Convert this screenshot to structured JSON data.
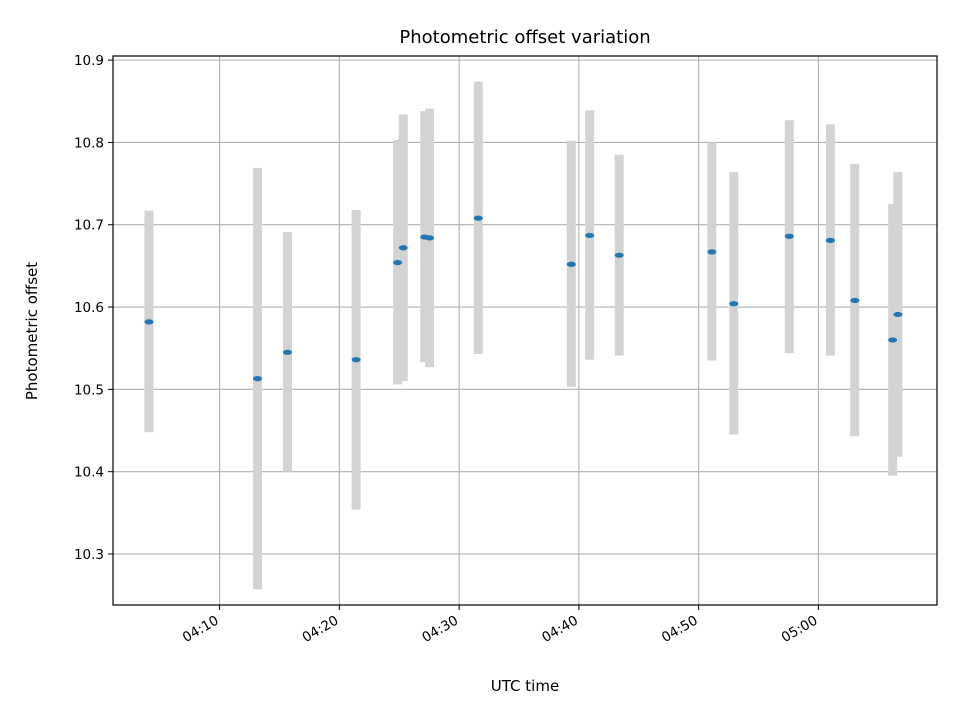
{
  "chart_data": {
    "type": "scatter",
    "title": "Photometric offset variation",
    "xlabel": "UTC time",
    "ylabel": "Photometric offset",
    "x_axis": "time",
    "xlim": [
      "04:01:06",
      "05:09:54"
    ],
    "ylim": [
      10.238,
      10.905
    ],
    "xticks": [
      "04:10",
      "04:20",
      "04:30",
      "04:40",
      "04:50",
      "05:00"
    ],
    "yticks": [
      10.3,
      10.4,
      10.5,
      10.6,
      10.7,
      10.8,
      10.9
    ],
    "grid": true,
    "legend": "none",
    "series": [
      {
        "point_color": "#1f77b4",
        "errorbar_color": "#d3d3d3",
        "points": [
          {
            "x": "04:04:06",
            "y": 10.582,
            "ymin": 10.448,
            "ymax": 10.717
          },
          {
            "x": "04:13:10",
            "y": 10.513,
            "ymin": 10.257,
            "ymax": 10.769
          },
          {
            "x": "04:15:40",
            "y": 10.545,
            "ymin": 10.4,
            "ymax": 10.691
          },
          {
            "x": "04:21:24",
            "y": 10.536,
            "ymin": 10.354,
            "ymax": 10.718
          },
          {
            "x": "04:24:52",
            "y": 10.654,
            "ymin": 10.506,
            "ymax": 10.803
          },
          {
            "x": "04:25:20",
            "y": 10.672,
            "ymin": 10.51,
            "ymax": 10.834
          },
          {
            "x": "04:27:08",
            "y": 10.685,
            "ymin": 10.533,
            "ymax": 10.838
          },
          {
            "x": "04:27:32",
            "y": 10.684,
            "ymin": 10.527,
            "ymax": 10.841
          },
          {
            "x": "04:31:36",
            "y": 10.708,
            "ymin": 10.543,
            "ymax": 10.874
          },
          {
            "x": "04:39:22",
            "y": 10.652,
            "ymin": 10.503,
            "ymax": 10.802
          },
          {
            "x": "04:40:54",
            "y": 10.687,
            "ymin": 10.536,
            "ymax": 10.839
          },
          {
            "x": "04:43:22",
            "y": 10.663,
            "ymin": 10.541,
            "ymax": 10.785
          },
          {
            "x": "04:51:06",
            "y": 10.667,
            "ymin": 10.535,
            "ymax": 10.8
          },
          {
            "x": "04:52:56",
            "y": 10.604,
            "ymin": 10.445,
            "ymax": 10.764
          },
          {
            "x": "04:57:34",
            "y": 10.686,
            "ymin": 10.544,
            "ymax": 10.827
          },
          {
            "x": "05:01:00",
            "y": 10.681,
            "ymin": 10.541,
            "ymax": 10.822
          },
          {
            "x": "05:03:02",
            "y": 10.608,
            "ymin": 10.443,
            "ymax": 10.774
          },
          {
            "x": "05:06:12",
            "y": 10.56,
            "ymin": 10.395,
            "ymax": 10.725
          },
          {
            "x": "05:06:38",
            "y": 10.591,
            "ymin": 10.418,
            "ymax": 10.764
          }
        ]
      }
    ]
  }
}
